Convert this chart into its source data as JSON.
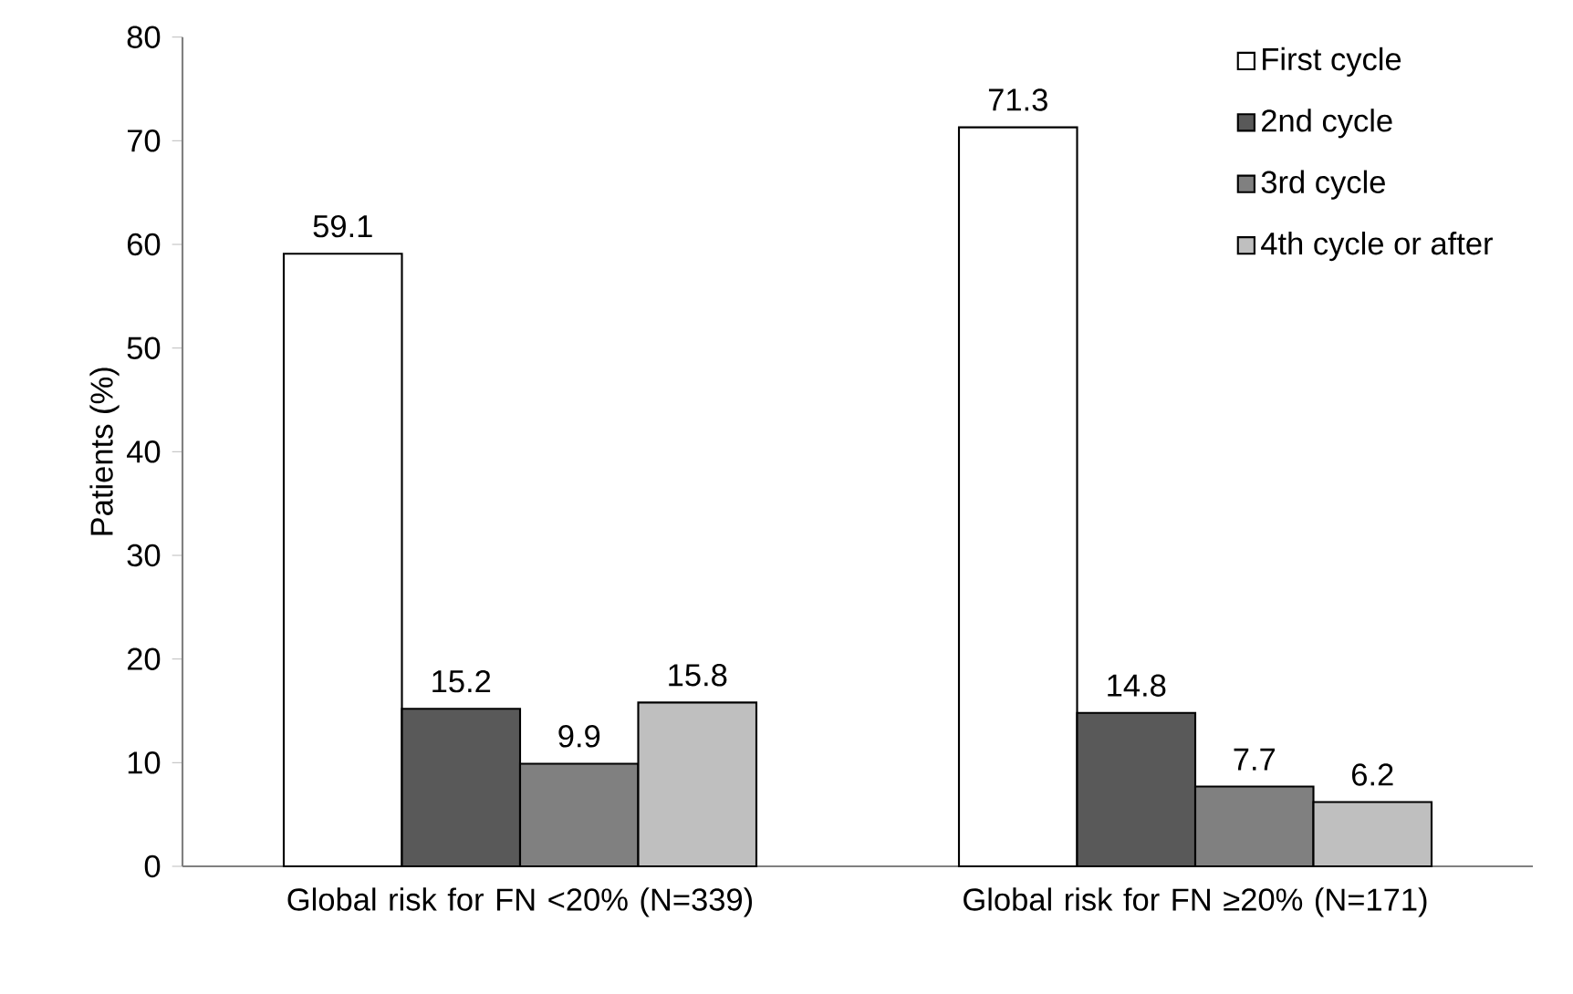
{
  "chart_data": {
    "type": "bar",
    "ylabel": "Patients (%)",
    "categories": [
      "Global risk for FN <20% (N=339)",
      "Global risk for FN ≥20% (N=171)"
    ],
    "series": [
      {
        "name": "First cycle",
        "color": "#ffffff",
        "values": [
          59.1,
          71.3
        ]
      },
      {
        "name": "2nd cycle",
        "color": "#595959",
        "values": [
          15.2,
          14.8
        ]
      },
      {
        "name": "3rd cycle",
        "color": "#808080",
        "values": [
          9.9,
          7.7
        ]
      },
      {
        "name": "4th cycle or after",
        "color": "#bfbfbf",
        "values": [
          15.8,
          6.2
        ]
      }
    ],
    "ylim": [
      0,
      80
    ],
    "yticks": [
      0,
      10,
      20,
      30,
      40,
      50,
      60,
      70,
      80
    ],
    "data_labels": true,
    "legend": "top right",
    "grid": false
  }
}
